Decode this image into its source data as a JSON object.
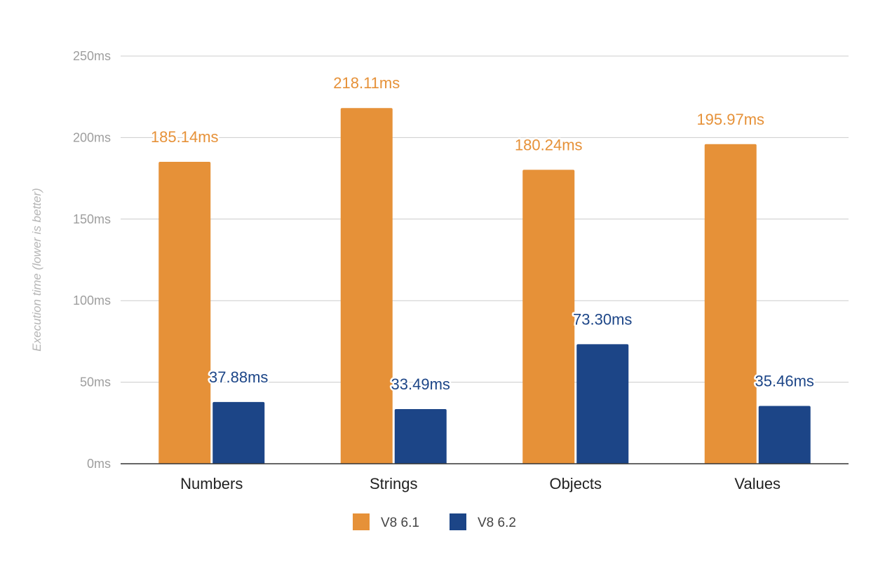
{
  "chart_data": {
    "type": "bar",
    "title": "",
    "xlabel": "",
    "ylabel": "Execution time (lower is better)",
    "categories": [
      "Numbers",
      "Strings",
      "Objects",
      "Values"
    ],
    "series": [
      {
        "name": "V8 6.1",
        "color": "#e69138",
        "values": [
          185.14,
          218.11,
          180.24,
          195.97
        ],
        "labels": [
          "185.14ms",
          "218.11ms",
          "180.24ms",
          "195.97ms"
        ]
      },
      {
        "name": "V8 6.2",
        "color": "#1c4587",
        "values": [
          37.88,
          33.49,
          73.3,
          35.46
        ],
        "labels": [
          "37.88ms",
          "33.49ms",
          "73.30ms",
          "35.46ms"
        ]
      }
    ],
    "ylim": [
      0,
      250
    ],
    "yticks": [
      0,
      50,
      100,
      150,
      200,
      250
    ],
    "ytick_labels": [
      "0ms",
      "50ms",
      "100ms",
      "150ms",
      "200ms",
      "250ms"
    ],
    "grid": true,
    "legend": "bottom-center"
  }
}
